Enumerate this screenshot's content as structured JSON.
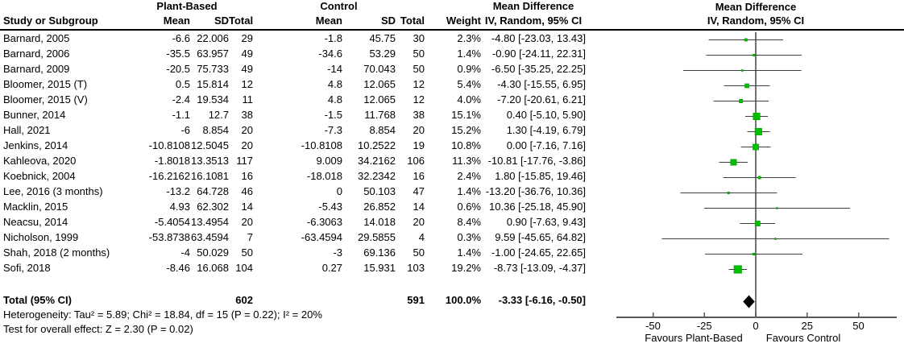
{
  "headers": {
    "group_plant_based": "Plant-Based",
    "group_control": "Control",
    "group_mean_difference": "Mean Difference",
    "study": "Study or Subgroup",
    "mean": "Mean",
    "sd": "SD",
    "total": "Total",
    "weight": "Weight",
    "method_ci": "IV, Random, 95% CI"
  },
  "footer": {
    "heterogeneity": "Heterogeneity: Tau² = 5.89; Chi² = 18.84, df = 15 (P = 0.22); I² = 20%",
    "overall_effect": "Test for overall effect: Z = 2.30 (P = 0.02)"
  },
  "colors": {
    "square_green": "#00c000",
    "square_border_green": "#008f00",
    "ci_line_gray": "#404040",
    "axis_gray": "#595959",
    "zero_line_gray": "#737373",
    "diamond_black": "#000000"
  },
  "chart_data": {
    "type": "scatter",
    "subtype": "forest_plot_meta_analysis",
    "title": "Mean Difference — IV, Random, 95% CI",
    "x_axis": {
      "tick_values": [
        -50,
        -25,
        0,
        25,
        50
      ],
      "tick_labels": [
        "-50",
        "-25",
        "0",
        "25",
        "50"
      ],
      "xlim": [
        -68,
        68
      ],
      "label_left": "Favours Plant-Based",
      "label_right": "Favours Control",
      "zero_line": 0
    },
    "legend_position": "none",
    "grid": "off",
    "studies": [
      {
        "name": "Barnard, 2005",
        "pb": {
          "mean": "-6.6",
          "sd": "22.006",
          "total": "29"
        },
        "ctrl": {
          "mean": "-1.8",
          "sd": "45.75",
          "total": "30"
        },
        "weight": "2.3%",
        "weight_pct": 2.3,
        "md": -4.8,
        "ci_low": -23.03,
        "ci_high": 13.43,
        "ci_text": "-4.80 [-23.03, 13.43]"
      },
      {
        "name": "Barnard, 2006",
        "pb": {
          "mean": "-35.5",
          "sd": "63.957",
          "total": "49"
        },
        "ctrl": {
          "mean": "-34.6",
          "sd": "53.29",
          "total": "50"
        },
        "weight": "1.4%",
        "weight_pct": 1.4,
        "md": -0.9,
        "ci_low": -24.11,
        "ci_high": 22.31,
        "ci_text": "-0.90 [-24.11, 22.31]"
      },
      {
        "name": "Barnard, 2009",
        "pb": {
          "mean": "-20.5",
          "sd": "75.733",
          "total": "49"
        },
        "ctrl": {
          "mean": "-14",
          "sd": "70.043",
          "total": "50"
        },
        "weight": "0.9%",
        "weight_pct": 0.9,
        "md": -6.5,
        "ci_low": -35.25,
        "ci_high": 22.25,
        "ci_text": "-6.50 [-35.25, 22.25]"
      },
      {
        "name": "Bloomer, 2015 (T)",
        "pb": {
          "mean": "0.5",
          "sd": "15.814",
          "total": "12"
        },
        "ctrl": {
          "mean": "4.8",
          "sd": "12.065",
          "total": "12"
        },
        "weight": "5.4%",
        "weight_pct": 5.4,
        "md": -4.3,
        "ci_low": -15.55,
        "ci_high": 6.95,
        "ci_text": "-4.30 [-15.55, 6.95]"
      },
      {
        "name": "Bloomer, 2015 (V)",
        "pb": {
          "mean": "-2.4",
          "sd": "19.534",
          "total": "11"
        },
        "ctrl": {
          "mean": "4.8",
          "sd": "12.065",
          "total": "12"
        },
        "weight": "4.0%",
        "weight_pct": 4.0,
        "md": -7.2,
        "ci_low": -20.61,
        "ci_high": 6.21,
        "ci_text": "-7.20 [-20.61, 6.21]"
      },
      {
        "name": "Bunner, 2014",
        "pb": {
          "mean": "-1.1",
          "sd": "12.7",
          "total": "38"
        },
        "ctrl": {
          "mean": "-1.5",
          "sd": "11.768",
          "total": "38"
        },
        "weight": "15.1%",
        "weight_pct": 15.1,
        "md": 0.4,
        "ci_low": -5.1,
        "ci_high": 5.9,
        "ci_text": "0.40 [-5.10, 5.90]"
      },
      {
        "name": "Hall, 2021",
        "pb": {
          "mean": "-6",
          "sd": "8.854",
          "total": "20"
        },
        "ctrl": {
          "mean": "-7.3",
          "sd": "8.854",
          "total": "20"
        },
        "weight": "15.2%",
        "weight_pct": 15.2,
        "md": 1.3,
        "ci_low": -4.19,
        "ci_high": 6.79,
        "ci_text": "1.30 [-4.19, 6.79]"
      },
      {
        "name": "Jenkins, 2014",
        "pb": {
          "mean": "-10.8108",
          "sd": "12.5045",
          "total": "20"
        },
        "ctrl": {
          "mean": "-10.8108",
          "sd": "10.2522",
          "total": "19"
        },
        "weight": "10.8%",
        "weight_pct": 10.8,
        "md": 0.0,
        "ci_low": -7.16,
        "ci_high": 7.16,
        "ci_text": "0.00 [-7.16, 7.16]"
      },
      {
        "name": "Kahleova, 2020",
        "pb": {
          "mean": "-1.8018",
          "sd": "13.3513",
          "total": "117"
        },
        "ctrl": {
          "mean": "9.009",
          "sd": "34.2162",
          "total": "106"
        },
        "weight": "11.3%",
        "weight_pct": 11.3,
        "md": -10.81,
        "ci_low": -17.76,
        "ci_high": -3.86,
        "ci_text": "-10.81 [-17.76, -3.86]"
      },
      {
        "name": "Koebnick, 2004",
        "pb": {
          "mean": "-16.2162",
          "sd": "16.1081",
          "total": "16"
        },
        "ctrl": {
          "mean": "-18.018",
          "sd": "32.2342",
          "total": "16"
        },
        "weight": "2.4%",
        "weight_pct": 2.4,
        "md": 1.8,
        "ci_low": -15.85,
        "ci_high": 19.46,
        "ci_text": "1.80 [-15.85, 19.46]"
      },
      {
        "name": "Lee, 2016 (3 months)",
        "pb": {
          "mean": "-13.2",
          "sd": "64.728",
          "total": "46"
        },
        "ctrl": {
          "mean": "0",
          "sd": "50.103",
          "total": "47"
        },
        "weight": "1.4%",
        "weight_pct": 1.4,
        "md": -13.2,
        "ci_low": -36.76,
        "ci_high": 10.36,
        "ci_text": "-13.20 [-36.76, 10.36]"
      },
      {
        "name": "Macklin, 2015",
        "pb": {
          "mean": "4.93",
          "sd": "62.302",
          "total": "14"
        },
        "ctrl": {
          "mean": "-5.43",
          "sd": "26.852",
          "total": "14"
        },
        "weight": "0.6%",
        "weight_pct": 0.6,
        "md": 10.36,
        "ci_low": -25.18,
        "ci_high": 45.9,
        "ci_text": "10.36 [-25.18, 45.90]"
      },
      {
        "name": "Neacsu, 2014",
        "pb": {
          "mean": "-5.4054",
          "sd": "13.4954",
          "total": "20"
        },
        "ctrl": {
          "mean": "-6.3063",
          "sd": "14.018",
          "total": "20"
        },
        "weight": "8.4%",
        "weight_pct": 8.4,
        "md": 0.9,
        "ci_low": -7.63,
        "ci_high": 9.43,
        "ci_text": "0.90 [-7.63, 9.43]"
      },
      {
        "name": "Nicholson, 1999",
        "pb": {
          "mean": "-53.8738",
          "sd": "63.4594",
          "total": "7"
        },
        "ctrl": {
          "mean": "-63.4594",
          "sd": "29.5855",
          "total": "4"
        },
        "weight": "0.3%",
        "weight_pct": 0.3,
        "md": 9.59,
        "ci_low": -45.65,
        "ci_high": 64.82,
        "ci_text": "9.59 [-45.65, 64.82]"
      },
      {
        "name": "Shah, 2018 (2 months)",
        "pb": {
          "mean": "-4",
          "sd": "50.029",
          "total": "50"
        },
        "ctrl": {
          "mean": "-3",
          "sd": "69.136",
          "total": "50"
        },
        "weight": "1.4%",
        "weight_pct": 1.4,
        "md": -1.0,
        "ci_low": -24.65,
        "ci_high": 22.65,
        "ci_text": "-1.00 [-24.65, 22.65]"
      },
      {
        "name": "Sofi, 2018",
        "pb": {
          "mean": "-8.46",
          "sd": "16.068",
          "total": "104"
        },
        "ctrl": {
          "mean": "0.27",
          "sd": "15.931",
          "total": "103"
        },
        "weight": "19.2%",
        "weight_pct": 19.2,
        "md": -8.73,
        "ci_low": -13.09,
        "ci_high": -4.37,
        "ci_text": "-8.73 [-13.09, -4.37]"
      }
    ],
    "total": {
      "name": "Total (95% CI)",
      "pb_total": "602",
      "ctrl_total": "591",
      "weight": "100.0%",
      "weight_pct": 100.0,
      "md": -3.33,
      "ci_low": -6.16,
      "ci_high": -0.5,
      "ci_text": "-3.33 [-6.16, -0.50]"
    }
  }
}
